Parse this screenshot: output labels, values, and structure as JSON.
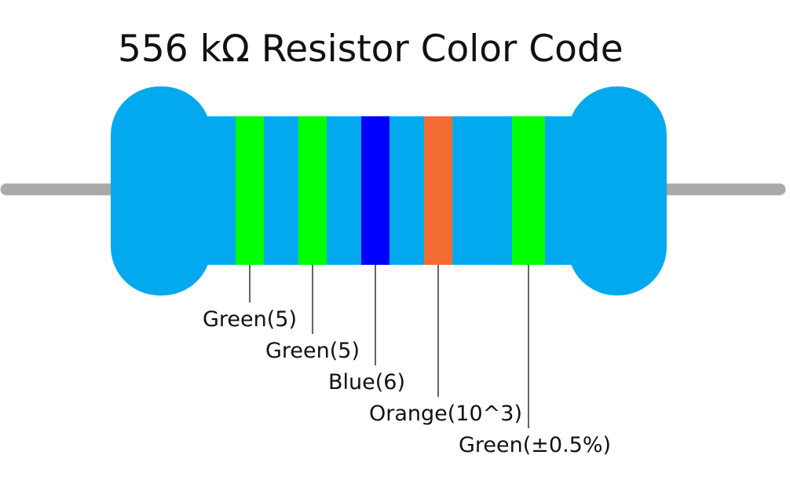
{
  "title": "556 kΩ Resistor Color Code",
  "colors": {
    "body": "#03a9ee",
    "lead": "#a9a9a9",
    "green": "#00ff00",
    "blue": "#0000ff",
    "orange": "#f26b33",
    "line": "#000000"
  },
  "bands": [
    {
      "name": "band-1",
      "color": "green",
      "label": "Green(5)"
    },
    {
      "name": "band-2",
      "color": "green",
      "label": "Green(5)"
    },
    {
      "name": "band-3",
      "color": "blue",
      "label": "Blue(6)"
    },
    {
      "name": "band-4",
      "color": "orange",
      "label": "Orange(10^3)"
    },
    {
      "name": "band-5",
      "color": "green",
      "label": "Green(±0.5%)"
    }
  ]
}
